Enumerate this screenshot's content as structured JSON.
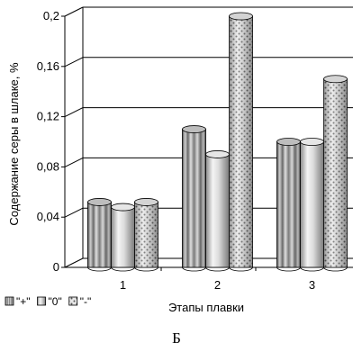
{
  "chart_data": {
    "type": "bar",
    "title": "",
    "xlabel": "Этапы плавки",
    "ylabel": "Содержание серы в шлаке, %",
    "categories": [
      "1",
      "2",
      "3"
    ],
    "y_ticks": [
      "0",
      "0,04",
      "0,08",
      "0,12",
      "0,16",
      "0,2"
    ],
    "ylim": [
      0,
      0.2
    ],
    "grid": true,
    "legend_position": "bottom-left",
    "series": [
      {
        "name": "\"+\"",
        "values": [
          0.052,
          0.11,
          0.1
        ],
        "pattern": "vertical-stripes"
      },
      {
        "name": "\"0\"",
        "values": [
          0.048,
          0.09,
          0.1
        ],
        "pattern": "light-gradient"
      },
      {
        "name": "\"-\"",
        "values": [
          0.052,
          0.2,
          0.15
        ],
        "pattern": "dotted"
      }
    ]
  },
  "caption": "Б"
}
